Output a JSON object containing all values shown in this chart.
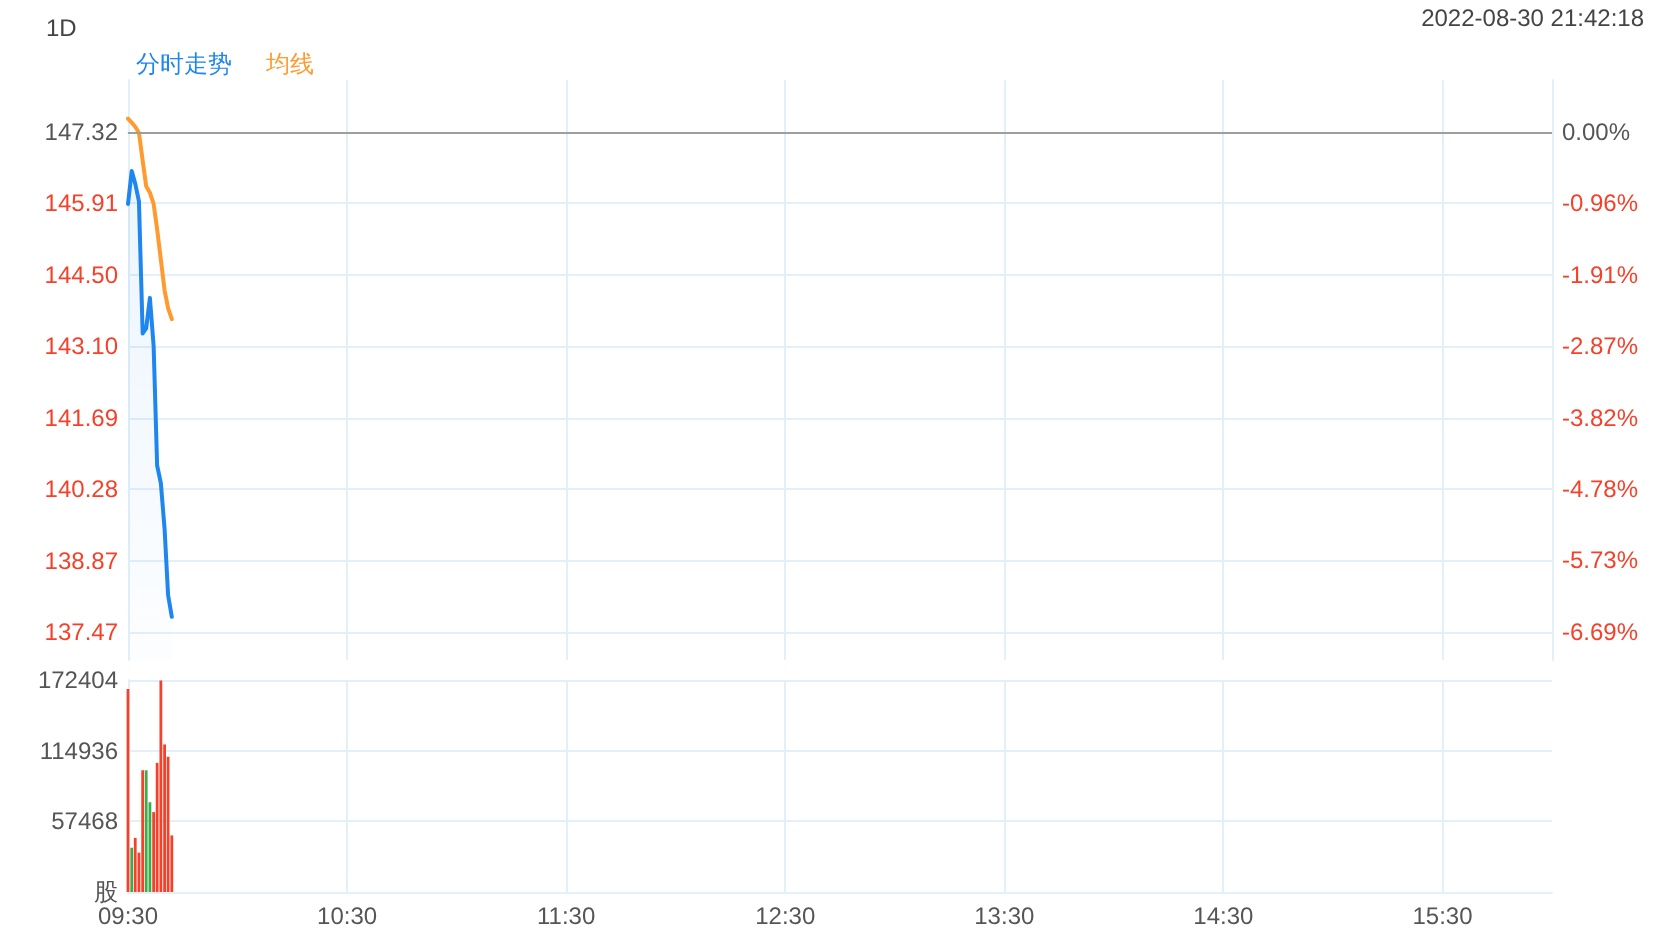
{
  "chart_data": [
    {
      "type": "line",
      "title": "1D",
      "annotations": [
        "2022-08-30 21:42:18"
      ],
      "xlim": [
        9.5,
        16
      ],
      "xticks": [
        9.5,
        10.5,
        11.5,
        12.5,
        13.5,
        14.5,
        15.5
      ],
      "ylim": [
        136.92,
        148.34
      ],
      "yticks": [
        137.47,
        138.87,
        140.28,
        141.69,
        {
          "value": 143.1,
          "label": "143.10"
        },
        {
          "value": 144.5,
          "label": "144.50"
        },
        145.91,
        147.32
      ],
      "y2lim": [
        -7.06,
        0.69
      ],
      "y2ticks": [
        {
          "value": -6.69,
          "label": "-6.69%"
        },
        {
          "value": -5.73,
          "label": "-5.73%"
        },
        {
          "value": -4.78,
          "label": "-4.78%"
        },
        {
          "value": -3.82,
          "label": "-3.82%"
        },
        {
          "value": -2.87,
          "label": "-2.87%"
        },
        {
          "value": -1.91,
          "label": "-1.91%"
        },
        {
          "value": -0.96,
          "label": "-0.96%"
        },
        {
          "value": 0,
          "label": "0.00%"
        }
      ],
      "ref_lines": [
        {
          "axis": "y",
          "value": 147.32,
          "color": "#9e9e9e"
        }
      ],
      "series": [
        {
          "name": "分时走势",
          "type": "area",
          "color": "#1f86f0",
          "x": [
            9.5,
            9.517,
            9.533,
            9.55,
            9.567,
            9.583,
            9.6,
            9.617,
            9.633,
            9.65,
            9.667,
            9.683,
            9.7
          ],
          "values": [
            145.9,
            146.55,
            146.3,
            145.95,
            143.35,
            143.45,
            144.05,
            143.1,
            140.75,
            140.4,
            139.5,
            138.2,
            137.77
          ]
        },
        {
          "name": "均线",
          "color": "#ff9a2e",
          "x": [
            9.5,
            9.517,
            9.533,
            9.55,
            9.567,
            9.583,
            9.6,
            9.617,
            9.633,
            9.65,
            9.667,
            9.683,
            9.7
          ],
          "values": [
            147.58,
            147.5,
            147.42,
            147.3,
            146.75,
            146.25,
            146.12,
            145.9,
            145.4,
            144.8,
            144.2,
            143.85,
            143.63
          ]
        }
      ],
      "grid": true,
      "legend": "top left",
      "marker": "none",
      "tick_labels": "y"
    },
    {
      "type": "bar",
      "xlim": [
        9.5,
        16
      ],
      "xticks": [
        {
          "value": 9.5,
          "label": "09:30"
        },
        {
          "value": 10.5,
          "label": "10:30"
        },
        {
          "value": 11.5,
          "label": "11:30"
        },
        {
          "value": 12.5,
          "label": "12:30"
        },
        {
          "value": 13.5,
          "label": "13:30"
        },
        {
          "value": 14.5,
          "label": "14:30"
        },
        {
          "value": 15.5,
          "label": "15:30"
        }
      ],
      "ylim": [
        0,
        172404
      ],
      "yticks": [
        {
          "value": 0,
          "label": "股"
        },
        57468,
        114936,
        172404
      ],
      "x": [
        9.5,
        9.517,
        9.533,
        9.55,
        9.567,
        9.583,
        9.6,
        9.617,
        9.633,
        9.65,
        9.667,
        9.683,
        9.7
      ],
      "values": [
        165000,
        36000,
        44000,
        32000,
        99000,
        99000,
        73000,
        65000,
        105000,
        172000,
        120000,
        110000,
        46000
      ],
      "colors": [
        "#f5412a",
        "#3bab4b",
        "#f5412a",
        "#f5412a",
        "#f5412a",
        "#3bab4b",
        "#3bab4b",
        "#f5412a",
        "#f5412a",
        "#f5412a",
        "#f5412a",
        "#f5412a",
        "#f5412a"
      ],
      "grid": true
    }
  ]
}
